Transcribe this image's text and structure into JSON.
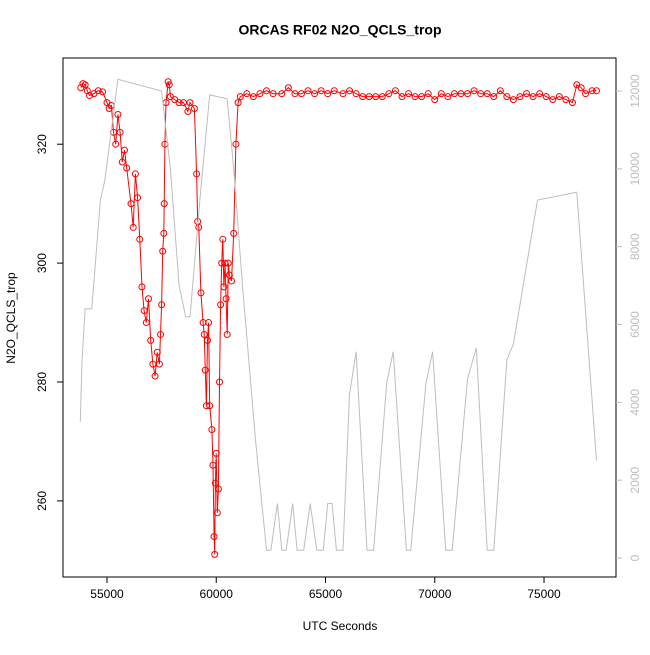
{
  "chart_data": {
    "type": "line",
    "title": "ORCAS RF02 N2O_QCLS_trop",
    "xlabel": "UTC Seconds",
    "ylabel": "N2O_QCLS_trop",
    "xlim": [
      52987,
      78294
    ],
    "xticks": [
      55000,
      60000,
      65000,
      70000,
      75000
    ],
    "ylim": [
      247.2,
      334.5
    ],
    "yticks": [
      260,
      280,
      300,
      320
    ],
    "y2lim": [
      -488,
      12848
    ],
    "y2ticks": [
      0,
      2000,
      4000,
      6000,
      8000,
      10000,
      12000
    ],
    "series": [
      {
        "color": "#ff0000",
        "markers": true,
        "x": [
          53800,
          53900,
          54000,
          54100,
          54200,
          54400,
          54600,
          54800,
          55000,
          55100,
          55200,
          55300,
          55400,
          55500,
          55600,
          55700,
          55800,
          55900,
          56100,
          56200,
          56300,
          56400,
          56500,
          56600,
          56700,
          56800,
          56900,
          57000,
          57100,
          57200,
          57300,
          57400,
          57450,
          57500,
          57550,
          57600,
          57620,
          57650,
          57700,
          57800,
          57850,
          57900,
          58100,
          58300,
          58500,
          58700,
          58800,
          59000,
          59100,
          59150,
          59200,
          59300,
          59400,
          59450,
          59500,
          59550,
          59600,
          59650,
          59700,
          59800,
          59850,
          59900,
          59930,
          59960,
          60000,
          60050,
          60100,
          60150,
          60200,
          60250,
          60300,
          60350,
          60400,
          60450,
          60500,
          60550,
          60600,
          60700,
          60800,
          60900,
          61000,
          61100,
          61400,
          61700,
          62000,
          62300,
          62600,
          63000,
          63300,
          63600,
          63900,
          64200,
          64500,
          64800,
          65100,
          65400,
          65800,
          66100,
          66400,
          66700,
          67000,
          67300,
          67600,
          67900,
          68200,
          68500,
          68800,
          69100,
          69400,
          69700,
          70000,
          70300,
          70600,
          70900,
          71200,
          71500,
          71800,
          72100,
          72400,
          72700,
          73000,
          73300,
          73600,
          73900,
          74200,
          74500,
          74800,
          75100,
          75400,
          75700,
          76000,
          76300,
          76500,
          76700,
          76900,
          77200,
          77400
        ],
        "values": [
          329.5,
          330.2,
          330,
          329,
          328.2,
          328.5,
          329,
          328.8,
          327,
          326,
          326.5,
          322,
          320,
          325,
          322,
          317,
          319,
          316,
          310,
          306,
          315,
          311,
          304,
          296,
          292,
          290,
          294,
          287,
          283,
          281,
          285,
          283,
          288,
          293,
          302,
          305,
          310,
          320,
          327,
          330.5,
          330,
          328,
          327.5,
          327,
          327,
          325.5,
          327,
          326,
          315,
          307,
          306,
          295,
          290,
          288,
          282,
          276,
          287,
          290,
          276,
          272,
          266,
          254,
          251,
          263,
          268,
          258,
          262,
          280,
          293,
          300,
          304,
          296,
          300,
          294,
          288,
          300,
          298,
          297,
          305,
          320,
          327,
          328,
          328.5,
          328,
          328.5,
          329,
          328.5,
          328.5,
          329.5,
          328.5,
          328.5,
          329,
          328.5,
          329,
          328.5,
          329,
          328.5,
          329,
          328.5,
          328,
          328,
          328,
          328,
          328.5,
          329,
          328,
          328.5,
          328,
          328,
          328.5,
          327.5,
          328.5,
          328,
          328.5,
          328.5,
          328.5,
          329,
          328.5,
          328.5,
          328,
          329,
          328,
          327.5,
          328,
          328.5,
          328,
          328.5,
          328,
          327.5,
          328,
          327.5,
          327,
          330,
          329.5,
          328.5,
          329,
          329
        ]
      },
      {
        "color": "#bebebe",
        "axis": "y2",
        "markers": false,
        "x": [
          53780,
          53850,
          54000,
          54300,
          54500,
          54700,
          54900,
          55200,
          55500,
          57500,
          57900,
          58300,
          58600,
          58800,
          59300,
          59700,
          60500,
          60800,
          61200,
          61800,
          62300,
          62500,
          62800,
          63000,
          63200,
          63500,
          63700,
          64000,
          64300,
          64600,
          64900,
          65100,
          65300,
          65500,
          65800,
          66100,
          66400,
          66900,
          67200,
          67800,
          68100,
          68700,
          68900,
          69600,
          69900,
          70500,
          70800,
          71500,
          71900,
          72400,
          72700,
          73300,
          73600,
          74700,
          76500,
          77400
        ],
        "values": [
          3500,
          5000,
          6400,
          6400,
          7800,
          9200,
          9700,
          11000,
          12300,
          12000,
          10000,
          7000,
          6200,
          6200,
          9500,
          11900,
          11800,
          10000,
          7000,
          3000,
          200,
          200,
          1400,
          200,
          200,
          1400,
          200,
          200,
          1400,
          200,
          200,
          1400,
          1400,
          200,
          200,
          4200,
          5300,
          200,
          200,
          4500,
          5300,
          200,
          200,
          4500,
          5300,
          200,
          200,
          4600,
          5400,
          200,
          200,
          5100,
          5500,
          9200,
          9400,
          2500
        ]
      }
    ]
  }
}
